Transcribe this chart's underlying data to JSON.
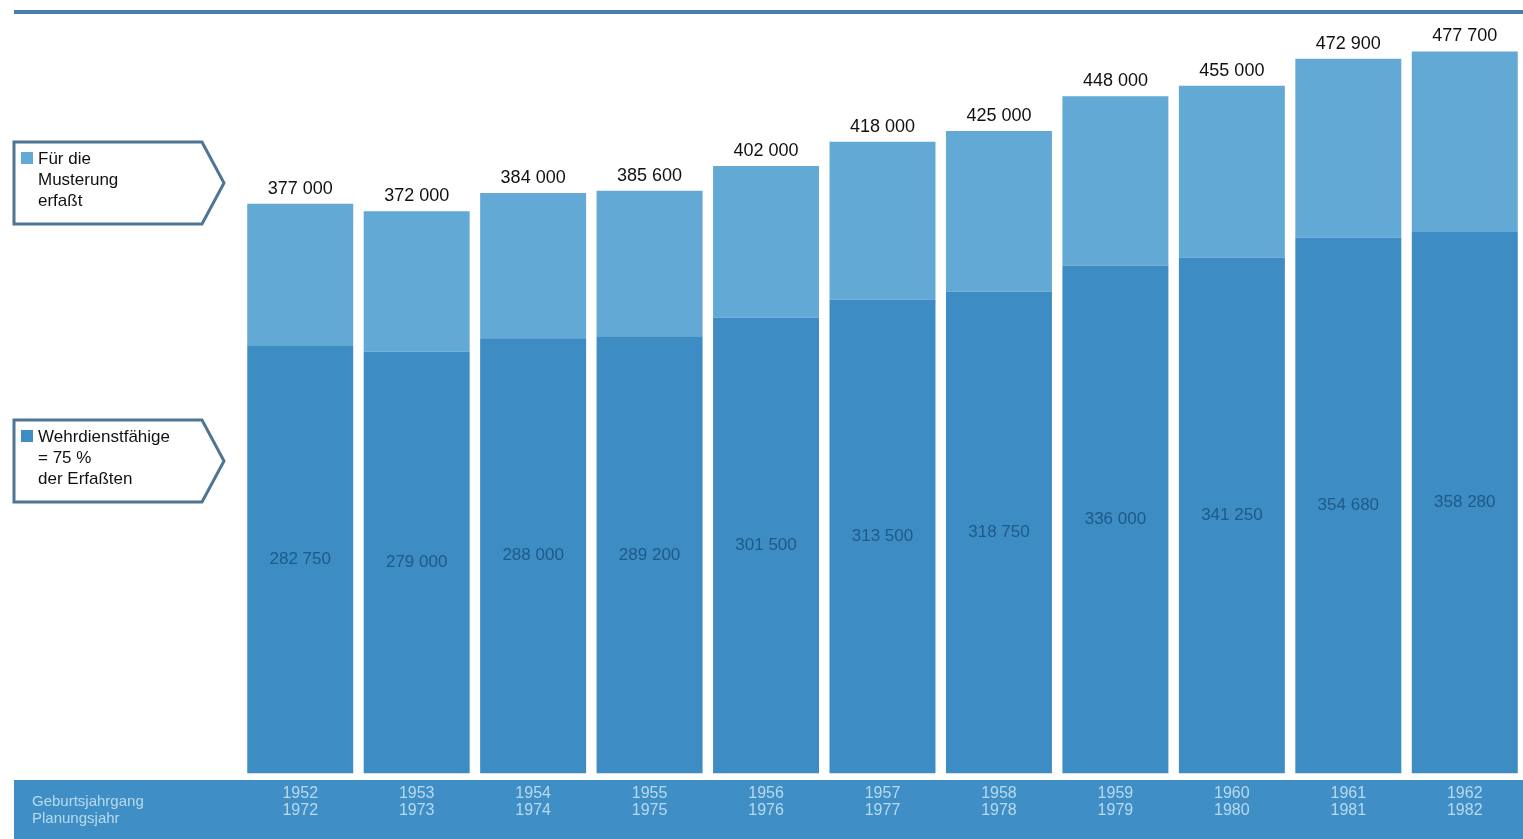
{
  "chart_data": {
    "type": "bar",
    "stacked": true,
    "categories": [
      "1952\n1972",
      "1953\n1973",
      "1954\n1974",
      "1955\n1975",
      "1956\n1976",
      "1957\n1977",
      "1958\n1978",
      "1959\n1979",
      "1960\n1980",
      "1961\n1981",
      "1962\n1982"
    ],
    "annotations": [
      "Geburtsjahrgang\nPlanungsjahr"
    ],
    "ylim": [
      0,
      480000
    ],
    "series": [
      {
        "name": "Wehrdienstfähige\n= 75 %\nder Erfaßten",
        "color": "#3d8cc4",
        "values": [
          282750,
          279000,
          288000,
          289200,
          301500,
          313500,
          318750,
          336000,
          341250,
          354680,
          358280
        ],
        "value_labels": [
          "282 750",
          "279 000",
          "288 000",
          "289 200",
          "301 500",
          "313 500",
          "318 750",
          "336 000",
          "341 250",
          "354 680",
          "358 280"
        ]
      },
      {
        "name": "Für die\nMusterung\nerfaßt",
        "color": "#63a9d5",
        "values": [
          94250,
          93000,
          96000,
          96400,
          100500,
          104500,
          106250,
          112000,
          113750,
          118220,
          119420
        ]
      }
    ],
    "totals": [
      "377 000",
      "372 000",
      "384 000",
      "385 600",
      "402 000",
      "418 000",
      "425 000",
      "448 000",
      "455 000",
      "472 900",
      "477 700"
    ],
    "legend": "left",
    "grid": false,
    "tick_labels": "x"
  }
}
